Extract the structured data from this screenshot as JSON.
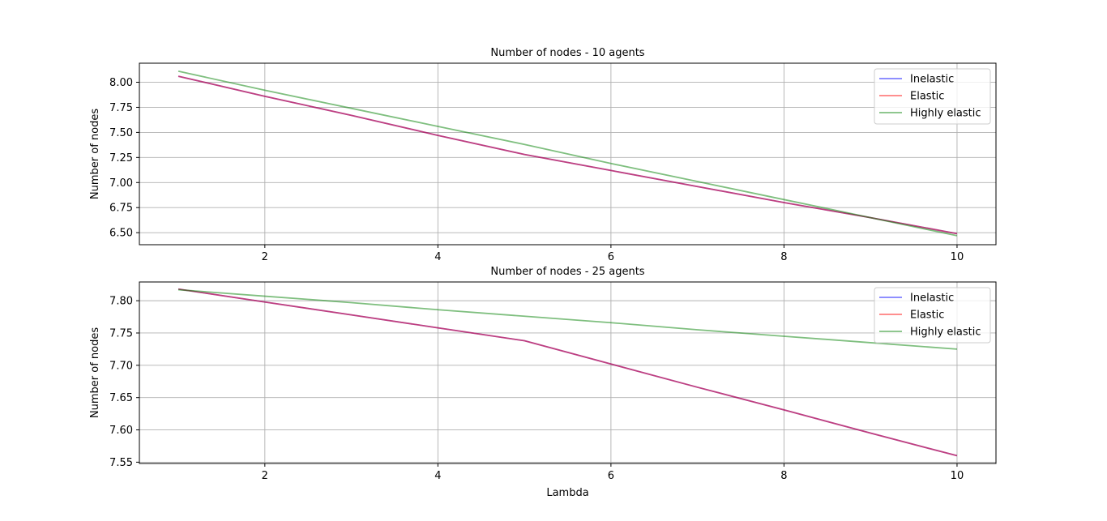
{
  "chart_data": [
    {
      "type": "line",
      "title": "Number of nodes - 10 agents",
      "xlabel": "",
      "ylabel": "Number of nodes",
      "xlim": [
        0.55,
        10.45
      ],
      "ylim": [
        6.38,
        8.19
      ],
      "xticks": [
        2,
        4,
        6,
        8,
        10
      ],
      "xtick_labels": [
        "2",
        "4",
        "6",
        "8",
        "10"
      ],
      "yticks": [
        6.5,
        6.75,
        7.0,
        7.25,
        7.5,
        7.75,
        8.0
      ],
      "ytick_labels": [
        "6.50",
        "6.75",
        "7.00",
        "7.25",
        "7.50",
        "7.75",
        "8.00"
      ],
      "grid": true,
      "legend_position": "top-right",
      "x": [
        1,
        2,
        3,
        4,
        5,
        6,
        7,
        8,
        9,
        10
      ],
      "series": [
        {
          "name": "Inelastic",
          "color": "#0000ff",
          "values": [
            8.06,
            7.86,
            7.67,
            7.47,
            7.28,
            7.12,
            6.96,
            6.8,
            6.65,
            6.49
          ]
        },
        {
          "name": "Elastic",
          "color": "#ff0000",
          "values": [
            8.06,
            7.86,
            7.67,
            7.47,
            7.28,
            7.12,
            6.96,
            6.8,
            6.65,
            6.49
          ]
        },
        {
          "name": "Highly elastic",
          "color": "#008000",
          "values": [
            8.11,
            7.92,
            7.74,
            7.56,
            7.38,
            7.19,
            7.01,
            6.83,
            6.65,
            6.47
          ]
        }
      ]
    },
    {
      "type": "line",
      "title": "Number of nodes - 25 agents",
      "xlabel": "Lambda",
      "ylabel": "Number of nodes",
      "xlim": [
        0.55,
        10.45
      ],
      "ylim": [
        7.548,
        7.829
      ],
      "xticks": [
        2,
        4,
        6,
        8,
        10
      ],
      "xtick_labels": [
        "2",
        "4",
        "6",
        "8",
        "10"
      ],
      "yticks": [
        7.55,
        7.6,
        7.65,
        7.7,
        7.75,
        7.8
      ],
      "ytick_labels": [
        "7.55",
        "7.60",
        "7.65",
        "7.70",
        "7.75",
        "7.80"
      ],
      "grid": true,
      "legend_position": "top-right",
      "x": [
        1,
        2,
        3,
        4,
        5,
        6,
        7,
        8,
        9,
        10
      ],
      "series": [
        {
          "name": "Inelastic",
          "color": "#0000ff",
          "values": [
            7.818,
            7.798,
            7.778,
            7.758,
            7.738,
            7.702,
            7.666,
            7.631,
            7.595,
            7.56
          ]
        },
        {
          "name": "Elastic",
          "color": "#ff0000",
          "values": [
            7.818,
            7.798,
            7.778,
            7.758,
            7.738,
            7.702,
            7.666,
            7.631,
            7.595,
            7.56
          ]
        },
        {
          "name": "Highly elastic",
          "color": "#008000",
          "values": [
            7.817,
            7.807,
            7.797,
            7.786,
            7.776,
            7.766,
            7.755,
            7.745,
            7.735,
            7.725
          ]
        }
      ]
    }
  ]
}
